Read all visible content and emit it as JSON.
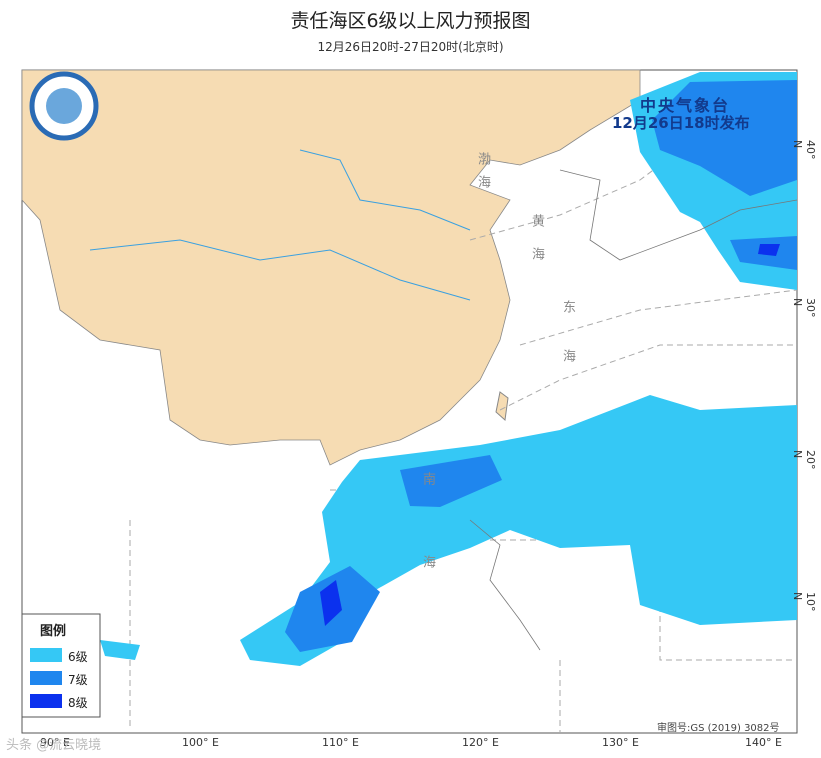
{
  "header": {
    "title": "责任海区6级以上风力预报图",
    "subtitle": "12月26日20时-27日20时(北京时)"
  },
  "issuer": {
    "name": "中央气象台",
    "time": "12月26日18时发布"
  },
  "legend": {
    "title": "图例",
    "items": [
      {
        "label": "6级",
        "color": "#35c8f5"
      },
      {
        "label": "7级",
        "color": "#1f86ee"
      },
      {
        "label": "8级",
        "color": "#0b31ee"
      }
    ]
  },
  "seas": [
    "渤海",
    "黄海",
    "东海",
    "南海"
  ],
  "longitudes": [
    "90° E",
    "100° E",
    "110° E",
    "120° E",
    "130° E",
    "140° E"
  ],
  "latitudes": [
    "40° N",
    "30° N",
    "20° N",
    "10° N"
  ],
  "approval": "审图号:GS (2019) 3082号",
  "watermark": "头条 @流云晓境"
}
